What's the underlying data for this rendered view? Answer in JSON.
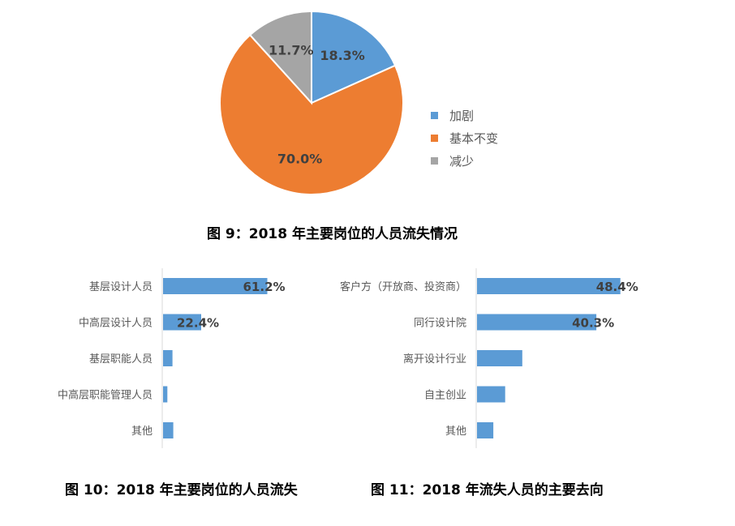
{
  "chart_data": [
    {
      "type": "pie",
      "labels": [
        "加剧",
        "基本不变",
        "减少"
      ],
      "values": [
        18.3,
        70.0,
        11.7
      ],
      "value_labels": [
        "18.3%",
        "70.0%",
        "11.7%"
      ],
      "colors": [
        "#5b9bd5",
        "#ed7d31",
        "#a5a5a5"
      ],
      "legend_position": "right"
    },
    {
      "type": "bar",
      "orientation": "horizontal",
      "categories": [
        "基层设计人员",
        "中高层设计人员",
        "基层职能人员",
        "中高层职能管理人员",
        "其他"
      ],
      "values": [
        61.2,
        22.4,
        5.5,
        2.5,
        6.0
      ],
      "value_labels": [
        "61.2%",
        "22.4%",
        "",
        "",
        ""
      ],
      "color": "#5b9bd5"
    },
    {
      "type": "bar",
      "orientation": "horizontal",
      "categories": [
        "客户方（开放商、投资商）",
        "同行设计院",
        "离开设计行业",
        "自主创业",
        "其他"
      ],
      "values": [
        48.4,
        40.3,
        15.3,
        9.5,
        5.5
      ],
      "value_labels": [
        "48.4%",
        "40.3%",
        "",
        "",
        ""
      ],
      "color": "#5b9bd5"
    }
  ],
  "captions": {
    "fig9": "图  9：2018 年主要岗位的人员流失情况",
    "fig10": "图  10：2018 年主要岗位的人员流失",
    "fig11": "图  11：2018 年流失人员的主要去向"
  }
}
